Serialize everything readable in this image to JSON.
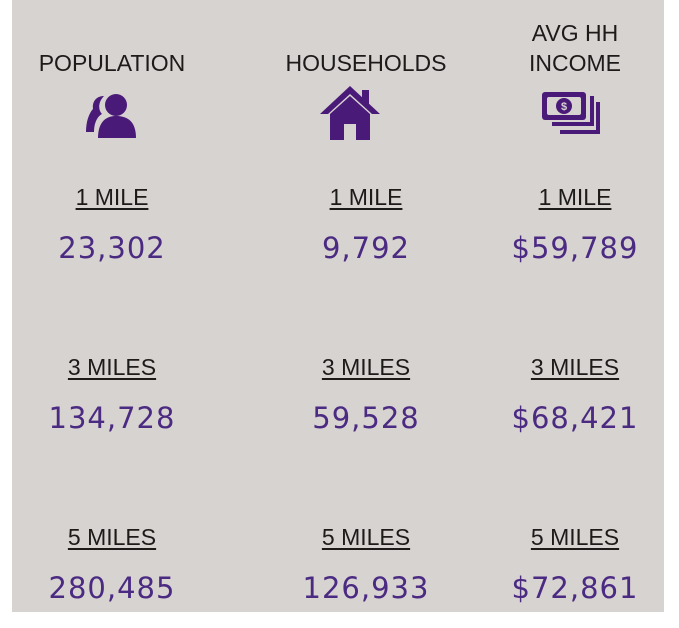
{
  "columns": [
    {
      "header": "POPULATION",
      "rows": [
        {
          "radius": "1 MILE",
          "value": "23,302"
        },
        {
          "radius": "3 MILES",
          "value": "134,728"
        },
        {
          "radius": "5 MILES",
          "value": "280,485"
        }
      ]
    },
    {
      "header": "HOUSEHOLDS",
      "rows": [
        {
          "radius": "1 MILE",
          "value": "9,792"
        },
        {
          "radius": "3 MILES",
          "value": "59,528"
        },
        {
          "radius": "5 MILES",
          "value": "126,933"
        }
      ]
    },
    {
      "header": "AVG HH INCOME",
      "rows": [
        {
          "radius": "1 MILE",
          "value": "$59,789"
        },
        {
          "radius": "3 MILES",
          "value": "$68,421"
        },
        {
          "radius": "5 MILES",
          "value": "$72,861"
        }
      ]
    }
  ]
}
